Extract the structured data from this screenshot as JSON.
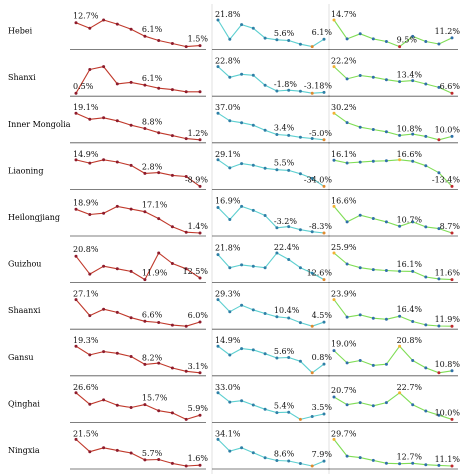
{
  "chart_data": {
    "type": "line",
    "layout": "small-multiples grid: provinces as rows, three series as columns",
    "rows": [
      {
        "name": "Hebei",
        "series": [
          {
            "values": [
              12.7,
              10.0,
              14.0,
              12.0,
              9.5,
              6.1,
              4.0,
              2.5,
              1.0,
              1.5
            ],
            "labels": [
              {
                "i": 0,
                "text": "12.7%"
              },
              {
                "i": 5,
                "text": "6.1%"
              },
              {
                "i": 9,
                "text": "1.5%"
              }
            ]
          },
          {
            "values": [
              21.8,
              6.0,
              18.0,
              15.0,
              7.0,
              5.6,
              5.0,
              2.0,
              0.0,
              6.1
            ],
            "labels": [
              {
                "i": 0,
                "text": "21.8%"
              },
              {
                "i": 5,
                "text": "5.6%"
              },
              {
                "i": 9,
                "text": "6.1%"
              }
            ]
          },
          {
            "values": [
              14.7,
              11.0,
              12.0,
              11.0,
              10.5,
              9.5,
              11.5,
              10.5,
              10.0,
              11.2
            ],
            "labels": [
              {
                "i": 0,
                "text": "14.7%"
              },
              {
                "i": 5,
                "text": "9.5%"
              },
              {
                "i": 9,
                "text": "11.2%"
              }
            ]
          }
        ]
      },
      {
        "name": "Shanxi",
        "series": [
          {
            "values": [
              0.5,
              17.0,
              19.0,
              7.0,
              8.0,
              6.1,
              4.0,
              3.0,
              1.5,
              1.5
            ],
            "labels": [
              {
                "i": 0,
                "text": "0.5%"
              },
              {
                "i": 5,
                "text": "6.1%"
              }
            ]
          },
          {
            "values": [
              22.8,
              12.0,
              15.0,
              14.0,
              4.0,
              -1.8,
              -1.0,
              -2.0,
              -4.0,
              -3.18
            ],
            "labels": [
              {
                "i": 0,
                "text": "22.8%"
              },
              {
                "i": 5,
                "text": "-1.8%"
              },
              {
                "i": 9,
                "text": "-3.18%"
              }
            ]
          },
          {
            "values": [
              22.2,
              15.0,
              17.0,
              16.0,
              14.5,
              13.4,
              14.0,
              12.0,
              10.0,
              6.6
            ],
            "labels": [
              {
                "i": 0,
                "text": "22.2%"
              },
              {
                "i": 5,
                "text": "13.4%"
              },
              {
                "i": 9,
                "text": "6.6%"
              }
            ]
          }
        ]
      },
      {
        "name": "Inner Mongolia",
        "series": [
          {
            "values": [
              19.1,
              15.0,
              16.0,
              14.0,
              11.0,
              8.8,
              6.0,
              4.0,
              2.0,
              1.2
            ],
            "labels": [
              {
                "i": 0,
                "text": "19.1%"
              },
              {
                "i": 5,
                "text": "8.8%"
              },
              {
                "i": 9,
                "text": "1.2%"
              }
            ]
          },
          {
            "values": [
              37.0,
              25.0,
              22.0,
              18.0,
              10.0,
              3.4,
              2.0,
              -1.0,
              -3.0,
              -5.0
            ],
            "labels": [
              {
                "i": 0,
                "text": "37.0%"
              },
              {
                "i": 5,
                "text": "3.4%"
              },
              {
                "i": 9,
                "text": "-5.0%"
              }
            ]
          },
          {
            "values": [
              30.2,
              22.0,
              18.0,
              16.0,
              14.0,
              10.8,
              12.0,
              10.0,
              7.0,
              10.0
            ],
            "labels": [
              {
                "i": 0,
                "text": "30.2%"
              },
              {
                "i": 5,
                "text": "10.8%"
              },
              {
                "i": 9,
                "text": "10.0%"
              }
            ]
          }
        ]
      },
      {
        "name": "Liaoning",
        "series": [
          {
            "values": [
              14.9,
              12.0,
              15.0,
              13.0,
              10.0,
              2.8,
              3.5,
              1.0,
              0.0,
              -8.9
            ],
            "labels": [
              {
                "i": 0,
                "text": "14.9%"
              },
              {
                "i": 5,
                "text": "2.8%"
              },
              {
                "i": 9,
                "text": "-8.9%"
              }
            ]
          },
          {
            "values": [
              29.1,
              10.0,
              20.0,
              16.0,
              9.0,
              5.5,
              4.0,
              -4.0,
              -15.0,
              -34.0
            ],
            "labels": [
              {
                "i": 0,
                "text": "29.1%"
              },
              {
                "i": 5,
                "text": "5.5%"
              },
              {
                "i": 9,
                "text": "-34.0%"
              }
            ]
          },
          {
            "values": [
              16.1,
              13.0,
              14.0,
              15.0,
              15.5,
              16.6,
              15.0,
              10.0,
              2.0,
              -13.4
            ],
            "labels": [
              {
                "i": 0,
                "text": "16.1%"
              },
              {
                "i": 5,
                "text": "16.6%"
              },
              {
                "i": 9,
                "text": "-13.4%"
              }
            ]
          }
        ]
      },
      {
        "name": "Heilongjiang",
        "series": [
          {
            "values": [
              18.9,
              15.0,
              16.0,
              21.0,
              19.0,
              17.1,
              12.0,
              6.0,
              2.0,
              1.4
            ],
            "labels": [
              {
                "i": 0,
                "text": "18.9%"
              },
              {
                "i": 5,
                "text": "17.1%"
              },
              {
                "i": 9,
                "text": "1.4%"
              }
            ]
          },
          {
            "values": [
              16.9,
              5.0,
              18.0,
              14.0,
              9.0,
              -3.2,
              -2.0,
              -5.0,
              -7.0,
              -8.3
            ],
            "labels": [
              {
                "i": 0,
                "text": "16.9%"
              },
              {
                "i": 5,
                "text": "-3.2%"
              },
              {
                "i": 9,
                "text": "-8.3%"
              }
            ]
          },
          {
            "values": [
              16.6,
              12.0,
              14.0,
              13.0,
              12.0,
              10.7,
              12.0,
              10.5,
              10.0,
              8.7
            ],
            "labels": [
              {
                "i": 0,
                "text": "16.6%"
              },
              {
                "i": 5,
                "text": "10.7%"
              },
              {
                "i": 9,
                "text": "8.7%"
              }
            ]
          }
        ]
      },
      {
        "name": "Guizhou",
        "series": [
          {
            "values": [
              20.8,
              14.0,
              17.0,
              16.0,
              15.0,
              11.9,
              22.0,
              18.0,
              16.0,
              12.5
            ],
            "labels": [
              {
                "i": 0,
                "text": "20.8%"
              },
              {
                "i": 5,
                "text": "11.9%"
              },
              {
                "i": 9,
                "text": "12.5%"
              }
            ]
          },
          {
            "values": [
              21.8,
              17.0,
              18.0,
              17.5,
              17.0,
              22.4,
              20.0,
              17.0,
              15.0,
              12.6
            ],
            "labels": [
              {
                "i": 0,
                "text": "21.8%"
              },
              {
                "i": 5,
                "text": "22.4%"
              },
              {
                "i": 9,
                "text": "12.6%"
              }
            ]
          },
          {
            "values": [
              25.9,
              20.0,
              18.0,
              17.0,
              16.5,
              16.1,
              16.0,
              13.0,
              12.0,
              11.6
            ],
            "labels": [
              {
                "i": 0,
                "text": "25.9%"
              },
              {
                "i": 5,
                "text": "16.1%"
              },
              {
                "i": 9,
                "text": "11.6%"
              }
            ]
          }
        ]
      },
      {
        "name": "Shaanxi",
        "series": [
          {
            "values": [
              27.1,
              12.0,
              18.0,
              15.0,
              10.0,
              6.6,
              5.5,
              3.0,
              2.0,
              6.0
            ],
            "labels": [
              {
                "i": 0,
                "text": "27.1%"
              },
              {
                "i": 5,
                "text": "6.6%"
              },
              {
                "i": 9,
                "text": "6.0%"
              }
            ]
          },
          {
            "values": [
              29.3,
              16.0,
              23.0,
              18.0,
              14.0,
              10.4,
              9.0,
              4.0,
              0.0,
              4.5
            ],
            "labels": [
              {
                "i": 0,
                "text": "29.3%"
              },
              {
                "i": 5,
                "text": "10.4%"
              },
              {
                "i": 9,
                "text": "4.5%"
              }
            ]
          },
          {
            "values": [
              23.9,
              16.0,
              17.0,
              15.5,
              15.0,
              16.4,
              14.0,
              12.5,
              12.0,
              11.9
            ],
            "labels": [
              {
                "i": 0,
                "text": "23.9%"
              },
              {
                "i": 5,
                "text": "16.4%"
              },
              {
                "i": 9,
                "text": "11.9%"
              }
            ]
          }
        ]
      },
      {
        "name": "Gansu",
        "series": [
          {
            "values": [
              19.3,
              14.0,
              16.0,
              15.0,
              13.0,
              8.2,
              9.0,
              6.0,
              4.0,
              3.1
            ],
            "labels": [
              {
                "i": 0,
                "text": "19.3%"
              },
              {
                "i": 5,
                "text": "8.2%"
              },
              {
                "i": 9,
                "text": "3.1%"
              }
            ]
          },
          {
            "values": [
              14.9,
              8.0,
              13.0,
              12.0,
              9.0,
              5.6,
              6.0,
              3.0,
              -6.0,
              0.8
            ],
            "labels": [
              {
                "i": 0,
                "text": "14.9%"
              },
              {
                "i": 5,
                "text": "5.6%"
              },
              {
                "i": 9,
                "text": "0.8%"
              }
            ]
          },
          {
            "values": [
              19.0,
              14.0,
              15.0,
              13.0,
              13.5,
              20.8,
              15.0,
              12.0,
              10.0,
              10.8
            ],
            "labels": [
              {
                "i": 0,
                "text": "19.0%"
              },
              {
                "i": 5,
                "text": "20.8%"
              },
              {
                "i": 9,
                "text": "10.8%"
              }
            ]
          }
        ]
      },
      {
        "name": "Qinghai",
        "series": [
          {
            "values": [
              26.6,
              16.0,
              20.0,
              15.0,
              13.0,
              15.7,
              10.0,
              8.0,
              2.0,
              5.9
            ],
            "labels": [
              {
                "i": 0,
                "text": "26.6%"
              },
              {
                "i": 5,
                "text": "15.7%"
              },
              {
                "i": 9,
                "text": "5.9%"
              }
            ]
          },
          {
            "values": [
              33.0,
              20.0,
              22.0,
              16.0,
              10.0,
              5.4,
              6.0,
              -4.0,
              0.0,
              3.5
            ],
            "labels": [
              {
                "i": 0,
                "text": "33.0%"
              },
              {
                "i": 5,
                "text": "5.4%"
              },
              {
                "i": 9,
                "text": "3.5%"
              }
            ]
          },
          {
            "values": [
              20.7,
              17.0,
              18.0,
              16.5,
              18.0,
              22.7,
              17.0,
              14.0,
              12.0,
              10.0
            ],
            "labels": [
              {
                "i": 0,
                "text": "20.7%"
              },
              {
                "i": 5,
                "text": "22.7%"
              },
              {
                "i": 9,
                "text": "10.0%"
              }
            ]
          }
        ]
      },
      {
        "name": "Ningxia",
        "series": [
          {
            "values": [
              21.5,
              12.0,
              15.0,
              13.0,
              11.0,
              5.7,
              6.0,
              3.0,
              1.0,
              1.6
            ],
            "labels": [
              {
                "i": 0,
                "text": "21.5%"
              },
              {
                "i": 5,
                "text": "5.7%"
              },
              {
                "i": 9,
                "text": "1.6%"
              }
            ]
          },
          {
            "values": [
              34.1,
              20.0,
              24.0,
              18.0,
              12.0,
              8.6,
              8.0,
              5.0,
              2.0,
              7.9
            ],
            "labels": [
              {
                "i": 0,
                "text": "34.1%"
              },
              {
                "i": 5,
                "text": "8.6%"
              },
              {
                "i": 9,
                "text": "7.9%"
              }
            ]
          },
          {
            "values": [
              29.7,
              18.0,
              17.0,
              15.0,
              13.0,
              12.7,
              13.0,
              12.0,
              11.5,
              11.1
            ],
            "labels": [
              {
                "i": 0,
                "text": "29.7%"
              },
              {
                "i": 5,
                "text": "12.7%"
              },
              {
                "i": 9,
                "text": "11.1%"
              }
            ]
          }
        ]
      }
    ],
    "styles": [
      {
        "line": "#c0392b",
        "marker": "#8e1b2b",
        "low": "#8e1b2b",
        "high": "#8e1b2b"
      },
      {
        "line": "#5ccfd0",
        "marker": "#2e7fa6",
        "low": "#e08a2e",
        "high": "#2e7fa6"
      },
      {
        "line": "#7fdd55",
        "marker": "#2f6fa8",
        "low": "#c0282d",
        "high": "#f2b233"
      }
    ],
    "axis_color": "#555555",
    "grid": false,
    "legend": "none"
  }
}
